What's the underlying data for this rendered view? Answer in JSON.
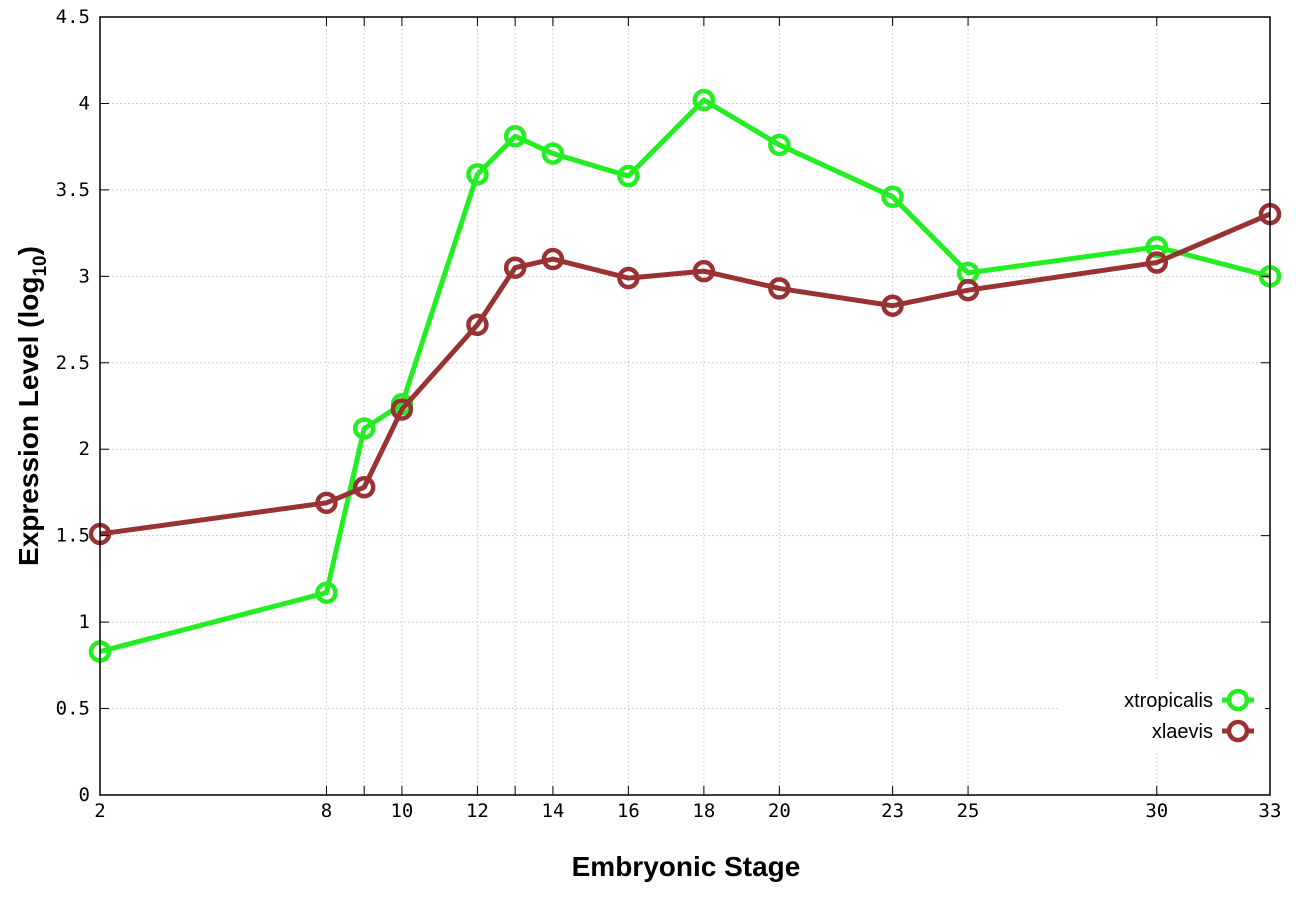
{
  "chart_data": {
    "type": "line",
    "title": "",
    "xlabel": "Embryonic Stage",
    "ylabel": "Expression Level (log",
    "ylabel_subscript": "10",
    "ylabel_close": ")",
    "x_ticks": [
      2,
      8,
      9,
      10,
      12,
      13,
      14,
      16,
      18,
      20,
      23,
      25,
      30,
      33
    ],
    "x_tick_labels": [
      "2",
      "8",
      "",
      "10",
      "12",
      "",
      "14",
      "16",
      "18",
      "20",
      "23",
      "25",
      "30",
      "33"
    ],
    "y_ticks": [
      0,
      0.5,
      1,
      1.5,
      2,
      2.5,
      3,
      3.5,
      4,
      4.5
    ],
    "y_tick_labels": [
      "0",
      "0.5",
      "1",
      "1.5",
      "2",
      "2.5",
      "3",
      "3.5",
      "4",
      "4.5"
    ],
    "ylim": [
      0,
      4.5
    ],
    "grid": true,
    "legend_position": "bottom-right",
    "series": [
      {
        "name": "xtropicalis",
        "color": "#22ee22",
        "points": [
          {
            "x": 2,
            "y": 0.83
          },
          {
            "x": 8,
            "y": 1.17
          },
          {
            "x": 9,
            "y": 2.12
          },
          {
            "x": 10,
            "y": 2.26
          },
          {
            "x": 12,
            "y": 3.59
          },
          {
            "x": 13,
            "y": 3.81
          },
          {
            "x": 14,
            "y": 3.71
          },
          {
            "x": 16,
            "y": 3.58
          },
          {
            "x": 18,
            "y": 4.02
          },
          {
            "x": 20,
            "y": 3.76
          },
          {
            "x": 23,
            "y": 3.46
          },
          {
            "x": 25,
            "y": 3.02
          },
          {
            "x": 30,
            "y": 3.17
          },
          {
            "x": 33,
            "y": 3.0
          }
        ]
      },
      {
        "name": "xlaevis",
        "color": "#993333",
        "points": [
          {
            "x": 2,
            "y": 1.51
          },
          {
            "x": 8,
            "y": 1.69
          },
          {
            "x": 9,
            "y": 1.78
          },
          {
            "x": 10,
            "y": 2.23
          },
          {
            "x": 12,
            "y": 2.72
          },
          {
            "x": 13,
            "y": 3.05
          },
          {
            "x": 14,
            "y": 3.1
          },
          {
            "x": 16,
            "y": 2.99
          },
          {
            "x": 18,
            "y": 3.03
          },
          {
            "x": 20,
            "y": 2.93
          },
          {
            "x": 23,
            "y": 2.83
          },
          {
            "x": 25,
            "y": 2.92
          },
          {
            "x": 30,
            "y": 3.08
          },
          {
            "x": 33,
            "y": 3.36
          }
        ]
      }
    ]
  }
}
